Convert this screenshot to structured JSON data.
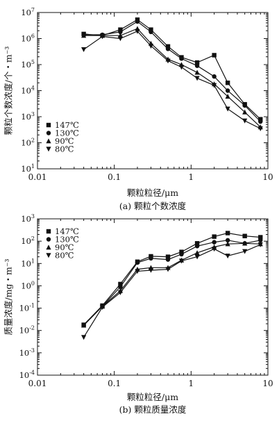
{
  "chart_data": [
    {
      "type": "line",
      "title": "",
      "caption": "(a) 颗粒个数浓度",
      "xlabel": "颗粒粒径/μm",
      "ylabel": "颗粒个数浓度/个・m⁻³",
      "xscale": "log",
      "yscale": "log",
      "xlim": [
        0.01,
        10
      ],
      "ylim": [
        10,
        10000000
      ],
      "xticks": [
        {
          "value": 0.01,
          "label": "0.01"
        },
        {
          "value": 0.1,
          "label": "0.1"
        },
        {
          "value": 1,
          "label": "1"
        },
        {
          "value": 10,
          "label": "10"
        }
      ],
      "yticks": [
        {
          "value": 10,
          "base": "10",
          "exp": "1"
        },
        {
          "value": 100,
          "base": "10",
          "exp": "2"
        },
        {
          "value": 1000,
          "base": "10",
          "exp": "3"
        },
        {
          "value": 10000,
          "base": "10",
          "exp": "4"
        },
        {
          "value": 100000,
          "base": "10",
          "exp": "5"
        },
        {
          "value": 1000000,
          "base": "10",
          "exp": "6"
        },
        {
          "value": 10000000,
          "base": "10",
          "exp": "7"
        }
      ],
      "legend_position": "bottom-left",
      "grid": false,
      "series": [
        {
          "name": "147℃",
          "marker": "square",
          "x": [
            0.04,
            0.07,
            0.12,
            0.2,
            0.3,
            0.5,
            0.75,
            1.2,
            2,
            3,
            5,
            8
          ],
          "y": [
            1500000,
            1300000,
            2200000,
            5300000,
            2200000,
            500000,
            190000,
            120000,
            230000,
            20000,
            3000,
            800
          ]
        },
        {
          "name": "130℃",
          "marker": "circle",
          "x": [
            0.04,
            0.07,
            0.12,
            0.2,
            0.3,
            0.5,
            0.75,
            1.2,
            2,
            3,
            5,
            8
          ],
          "y": [
            1400000,
            1400000,
            1800000,
            4500000,
            1800000,
            400000,
            170000,
            90000,
            35000,
            10000,
            2700,
            650
          ]
        },
        {
          "name": "90℃",
          "marker": "triangle-up",
          "x": [
            0.04,
            0.07,
            0.12,
            0.2,
            0.3,
            0.5,
            0.75,
            1.2,
            2,
            3,
            5,
            8
          ],
          "y": [
            1300000,
            1300000,
            1300000,
            2400000,
            650000,
            160000,
            100000,
            50000,
            18000,
            6000,
            1500,
            400
          ]
        },
        {
          "name": "80℃",
          "marker": "triangle-down",
          "x": [
            0.04,
            0.07,
            0.12,
            0.2,
            0.3,
            0.5,
            0.75,
            1.2,
            2,
            3,
            5,
            8
          ],
          "y": [
            380000,
            1200000,
            1000000,
            1900000,
            520000,
            140000,
            80000,
            30000,
            16000,
            2000,
            700,
            350
          ]
        }
      ]
    },
    {
      "type": "line",
      "title": "",
      "caption": "(b) 颗粒质量浓度",
      "xlabel": "颗粒粒径/μm",
      "ylabel": "质量浓度/mg・m⁻³",
      "xscale": "log",
      "yscale": "log",
      "xlim": [
        0.01,
        10
      ],
      "ylim": [
        0.0001,
        1000
      ],
      "xticks": [
        {
          "value": 0.01,
          "label": "0.01"
        },
        {
          "value": 0.1,
          "label": "0.1"
        },
        {
          "value": 1,
          "label": "1"
        },
        {
          "value": 10,
          "label": "10"
        }
      ],
      "yticks": [
        {
          "value": 0.0001,
          "base": "10",
          "exp": "-4"
        },
        {
          "value": 0.001,
          "base": "10",
          "exp": "-3"
        },
        {
          "value": 0.01,
          "base": "10",
          "exp": "-2"
        },
        {
          "value": 0.1,
          "base": "10",
          "exp": "-1"
        },
        {
          "value": 1,
          "base": "10",
          "exp": "0"
        },
        {
          "value": 10,
          "base": "10",
          "exp": "1"
        },
        {
          "value": 100,
          "base": "10",
          "exp": "2"
        },
        {
          "value": 1000,
          "base": "10",
          "exp": "3"
        }
      ],
      "legend_position": "top-left",
      "grid": false,
      "series": [
        {
          "name": "147℃",
          "marker": "square",
          "x": [
            0.04,
            0.07,
            0.12,
            0.2,
            0.3,
            0.5,
            0.75,
            1.2,
            2,
            3,
            5,
            8
          ],
          "y": [
            0.018,
            0.13,
            1.2,
            12,
            21,
            20,
            33,
            80,
            160,
            230,
            170,
            150
          ]
        },
        {
          "name": "130℃",
          "marker": "circle",
          "x": [
            0.04,
            0.07,
            0.12,
            0.2,
            0.3,
            0.5,
            0.75,
            1.2,
            2,
            3,
            5,
            8
          ],
          "y": [
            0.017,
            0.12,
            0.9,
            11,
            17,
            15,
            26,
            60,
            90,
            110,
            80,
            110
          ]
        },
        {
          "name": "90℃",
          "marker": "triangle-up",
          "x": [
            0.04,
            0.07,
            0.12,
            0.2,
            0.3,
            0.5,
            0.75,
            1.2,
            2,
            3,
            5,
            8
          ],
          "y": [
            0.017,
            0.12,
            0.6,
            5.5,
            6.5,
            6.5,
            14,
            30,
            55,
            75,
            80,
            75
          ]
        },
        {
          "name": "80℃",
          "marker": "triangle-down",
          "x": [
            0.04,
            0.07,
            0.12,
            0.2,
            0.3,
            0.5,
            0.75,
            1.2,
            2,
            3,
            5,
            8
          ],
          "y": [
            0.005,
            0.11,
            0.5,
            4.5,
            5,
            5.5,
            13,
            20,
            45,
            22,
            35,
            70
          ]
        }
      ]
    }
  ]
}
